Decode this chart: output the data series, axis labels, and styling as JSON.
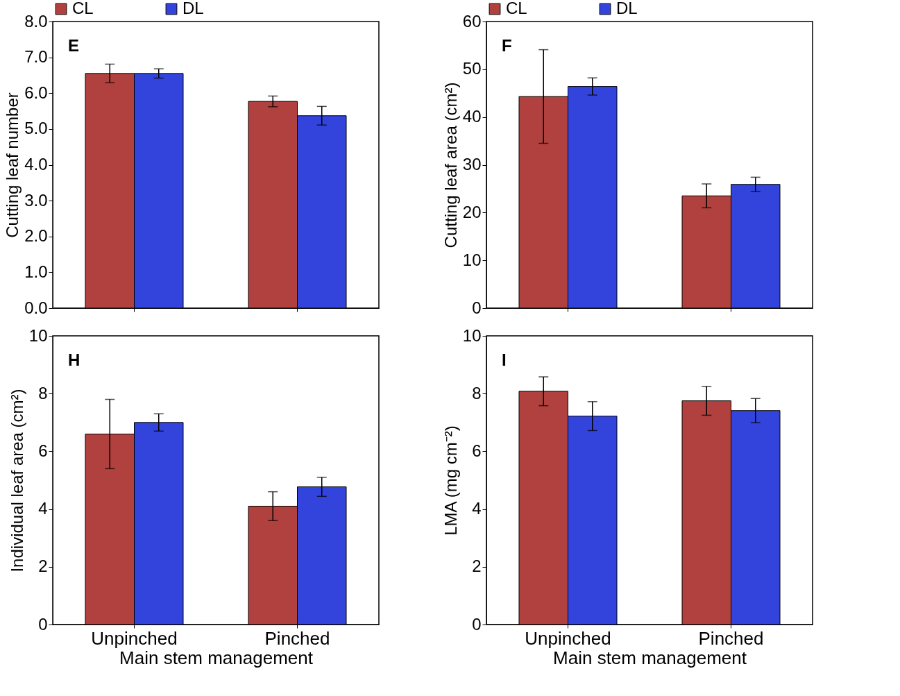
{
  "chart_data": [
    {
      "type": "bar",
      "categories": [
        null,
        null
      ],
      "ylabel": "Cutting leaf number",
      "ylim": [
        0,
        8
      ],
      "yticks": [
        {
          "value": 0,
          "label": "0.0"
        },
        {
          "value": 1,
          "label": "1.0"
        },
        {
          "value": 2,
          "label": "2.0"
        },
        {
          "value": 3,
          "label": "3.0"
        },
        {
          "value": 4,
          "label": "4.0"
        },
        {
          "value": 5,
          "label": "5.0"
        },
        {
          "value": 6,
          "label": "6.0"
        },
        {
          "value": 7,
          "label": "7.0"
        },
        {
          "value": 8,
          "label": "8.0"
        }
      ],
      "tick_labels": "y",
      "legend": "top",
      "annotations": [
        "E"
      ],
      "series": [
        {
          "name": "CL",
          "color": "#b0413e",
          "values": [
            6.55,
            5.77
          ],
          "errors": [
            0.26,
            0.15
          ]
        },
        {
          "name": "DL",
          "color": "#3344dd",
          "values": [
            6.55,
            5.37
          ],
          "errors": [
            0.13,
            0.26
          ]
        }
      ]
    },
    {
      "type": "bar",
      "categories": [
        null,
        null
      ],
      "ylabel": "Cutting leaf area (cm²)",
      "ylim": [
        0,
        60
      ],
      "yticks": [
        0,
        10,
        20,
        30,
        40,
        50,
        60
      ],
      "tick_labels": "y",
      "legend": "top",
      "annotations": [
        "F"
      ],
      "series": [
        {
          "name": "CL",
          "color": "#b0413e",
          "values": [
            44.3,
            23.5
          ],
          "errors": [
            9.8,
            2.5
          ]
        },
        {
          "name": "DL",
          "color": "#3344dd",
          "values": [
            46.4,
            25.9
          ],
          "errors": [
            1.8,
            1.5
          ]
        }
      ]
    },
    {
      "type": "bar",
      "categories": [
        "Unpinched",
        "Pinched"
      ],
      "xlabel": "Main stem management",
      "ylabel": "Individual leaf area (cm²)",
      "ylim": [
        0,
        10
      ],
      "yticks": [
        0,
        2,
        4,
        6,
        8,
        10
      ],
      "annotations": [
        "H"
      ],
      "series": [
        {
          "color": "#b0413e",
          "values": [
            6.6,
            4.1
          ],
          "errors": [
            1.2,
            0.5
          ]
        },
        {
          "color": "#3344dd",
          "values": [
            7.0,
            4.77
          ],
          "errors": [
            0.3,
            0.33
          ]
        }
      ]
    },
    {
      "type": "bar",
      "categories": [
        "Unpinched",
        "Pinched"
      ],
      "xlabel": "Main stem management",
      "ylabel": "LMA (mg cm⁻²)",
      "ylim": [
        0,
        10
      ],
      "yticks": [
        0,
        2,
        4,
        6,
        8,
        10
      ],
      "annotations": [
        "I"
      ],
      "series": [
        {
          "color": "#b0413e",
          "values": [
            8.08,
            7.75
          ],
          "errors": [
            0.5,
            0.5
          ]
        },
        {
          "color": "#3344dd",
          "values": [
            7.22,
            7.41
          ],
          "errors": [
            0.5,
            0.42
          ]
        }
      ]
    }
  ]
}
